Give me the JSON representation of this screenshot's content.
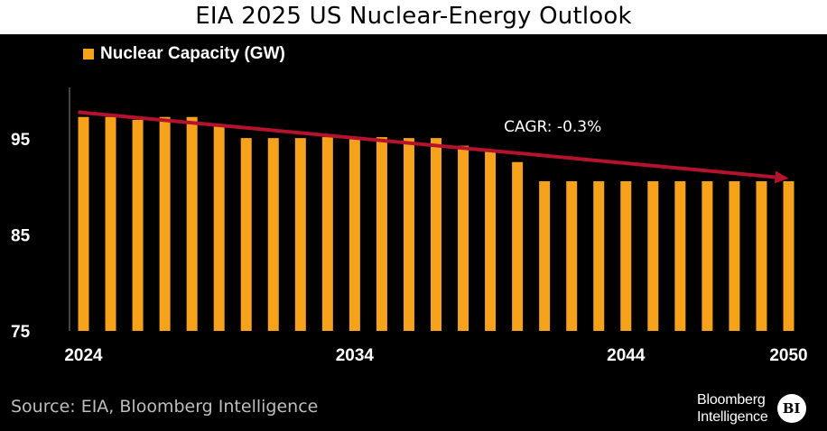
{
  "chart_data": {
    "type": "bar",
    "title": "EIA 2025 US Nuclear-Energy Outlook",
    "xlabel": "",
    "ylabel": "",
    "ylim": [
      75,
      100
    ],
    "yticks": [
      75,
      85,
      95
    ],
    "xtick_labels": [
      "2024",
      "2034",
      "2044",
      "2050"
    ],
    "categories": [
      "2024",
      "2025",
      "2026",
      "2027",
      "2028",
      "2029",
      "2030",
      "2031",
      "2032",
      "2033",
      "2034",
      "2035",
      "2036",
      "2037",
      "2038",
      "2039",
      "2040",
      "2041",
      "2042",
      "2043",
      "2044",
      "2045",
      "2046",
      "2047",
      "2048",
      "2049",
      "2050"
    ],
    "series": [
      {
        "name": "Nuclear Capacity (GW)",
        "color": "#f7a21b",
        "values": [
          97.3,
          97.3,
          97.0,
          97.3,
          97.3,
          96.3,
          95.1,
          95.1,
          95.1,
          95.2,
          95.2,
          95.2,
          95.1,
          95.1,
          94.3,
          93.8,
          92.6,
          90.6,
          90.6,
          90.6,
          90.6,
          90.6,
          90.6,
          90.6,
          90.6,
          90.6,
          90.6
        ]
      }
    ],
    "trend_arrow": {
      "color": "#b5122e",
      "start": {
        "x": "2024",
        "y": 97.8
      },
      "end": {
        "x": "2050",
        "y": 90.9
      },
      "label": "CAGR: -0.3%",
      "label_anchor": {
        "x": "2041",
        "y": 95.2
      }
    },
    "source": "Source: EIA, Bloomberg Intelligence",
    "logo": {
      "line1": "Bloomberg",
      "line2": "Intelligence",
      "badge": "BI"
    }
  }
}
